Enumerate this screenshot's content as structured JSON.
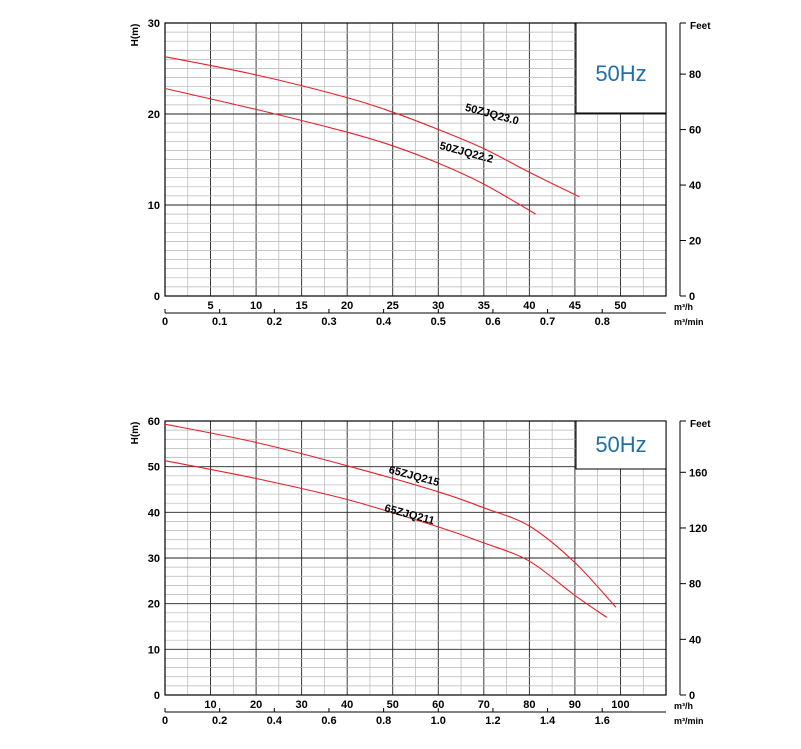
{
  "chart_data": [
    {
      "type": "line",
      "badge": "50Hz",
      "ylabel": "H(m)",
      "y2label": "Feet",
      "x_unit": "m³/h",
      "x2_unit": "m³/min",
      "ylim": [
        0,
        30
      ],
      "yticks": [
        0,
        10,
        20,
        30
      ],
      "xlim": [
        0,
        55
      ],
      "xticks": [
        5,
        10,
        15,
        20,
        25,
        30,
        35,
        40,
        45,
        50
      ],
      "x2ticks": [
        0,
        0.1,
        0.2,
        0.3,
        0.4,
        0.5,
        0.6,
        0.7,
        0.8
      ],
      "x2tick_labels": [
        "0",
        "0.1",
        "0.2",
        "0.3",
        "0.4",
        "0.5",
        "0.6",
        "0.7",
        "0.8"
      ],
      "y2ticks": [
        0,
        20,
        40,
        60,
        80
      ],
      "grid": true,
      "series": [
        {
          "name": "50ZJQ23.0",
          "x": [
            0,
            10,
            20,
            25,
            30,
            35,
            40,
            45.5
          ],
          "y": [
            26.3,
            24.3,
            21.8,
            20.2,
            18.3,
            16.2,
            13.6,
            10.9
          ]
        },
        {
          "name": "50ZJQ22.2",
          "x": [
            0,
            10,
            20,
            25,
            30,
            35,
            40.7
          ],
          "y": [
            22.8,
            20.5,
            18.0,
            16.5,
            14.6,
            12.3,
            9.0
          ]
        }
      ]
    },
    {
      "type": "line",
      "badge": "50Hz",
      "ylabel": "H(m)",
      "y2label": "Feet",
      "x_unit": "m³/h",
      "x2_unit": "m³/min",
      "ylim": [
        0,
        60
      ],
      "yticks": [
        0,
        10,
        20,
        30,
        40,
        50,
        60
      ],
      "xlim": [
        0,
        110
      ],
      "xticks": [
        10,
        20,
        30,
        40,
        50,
        60,
        70,
        80,
        90,
        100
      ],
      "x2ticks": [
        0,
        0.2,
        0.4,
        0.6,
        0.8,
        1.0,
        1.2,
        1.4,
        1.6
      ],
      "x2tick_labels": [
        "0",
        "0.2",
        "0.4",
        "0.6",
        "0.8",
        "1.0",
        "1.2",
        "1.4",
        "1.6"
      ],
      "y2ticks": [
        0,
        40,
        80,
        120,
        160
      ],
      "grid": true,
      "series": [
        {
          "name": "65ZJQ215",
          "x": [
            0,
            20,
            40,
            60,
            70,
            80,
            90,
            99
          ],
          "y": [
            59.3,
            55.3,
            50.2,
            44.5,
            41.0,
            37.0,
            29.0,
            19.2
          ]
        },
        {
          "name": "65ZJQ211",
          "x": [
            0,
            20,
            40,
            60,
            70,
            80,
            90,
            97
          ],
          "y": [
            51.3,
            47.4,
            42.8,
            36.8,
            33.3,
            29.3,
            21.8,
            17.0
          ]
        }
      ]
    }
  ]
}
